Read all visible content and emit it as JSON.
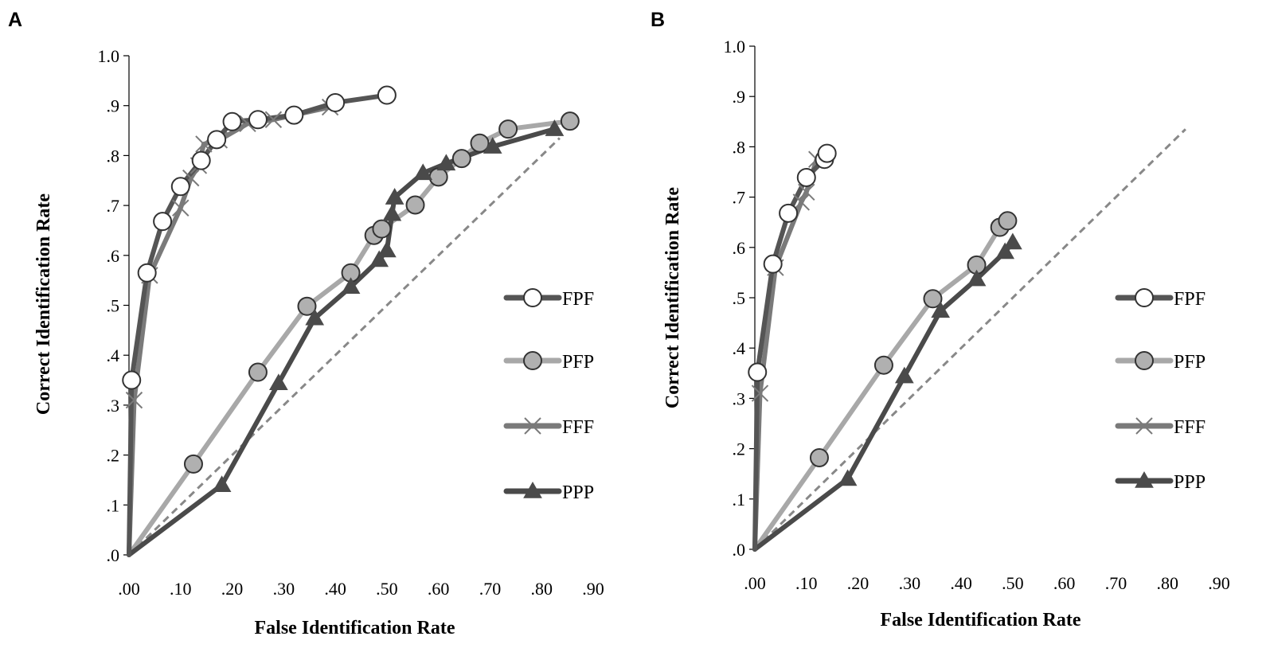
{
  "chart_data": [
    {
      "type": "line",
      "panel": "A",
      "xlabel": "False Identification Rate",
      "ylabel": "Correct Identification Rate",
      "xlim": [
        0,
        0.9
      ],
      "ylim": [
        0,
        1.0
      ],
      "x_ticks": [
        ".00",
        ".10",
        ".20",
        ".30",
        ".40",
        ".50",
        ".60",
        ".70",
        ".80",
        ".90"
      ],
      "y_ticks": [
        ".0",
        ".1",
        ".2",
        ".3",
        ".4",
        ".5",
        ".6",
        ".7",
        ".8",
        ".9",
        "1.0"
      ],
      "chance_line": {
        "x": [
          0,
          0.835
        ],
        "y": [
          0,
          0.835
        ]
      },
      "legend": [
        "FPF",
        "PFP",
        "FFF",
        "PPP"
      ],
      "series": [
        {
          "name": "FPF",
          "color": "#555555",
          "marker": "circle-open",
          "x": [
            0,
            0.005,
            0.035,
            0.065,
            0.1,
            0.14,
            0.17,
            0.2,
            0.25,
            0.32,
            0.4,
            0.5
          ],
          "y": [
            0,
            0.35,
            0.565,
            0.668,
            0.738,
            0.79,
            0.832,
            0.868,
            0.872,
            0.881,
            0.906,
            0.921
          ]
        },
        {
          "name": "PFP",
          "color": "#a8a8a8",
          "marker": "circle-filled",
          "x": [
            0,
            0.125,
            0.25,
            0.345,
            0.43,
            0.475,
            0.49,
            0.555,
            0.6,
            0.645,
            0.68,
            0.735,
            0.855
          ],
          "y": [
            0,
            0.182,
            0.366,
            0.498,
            0.565,
            0.64,
            0.653,
            0.701,
            0.757,
            0.794,
            0.825,
            0.853,
            0.869
          ]
        },
        {
          "name": "FFF",
          "color": "#7a7a7a",
          "marker": "x",
          "x": [
            0,
            0.01,
            0.04,
            0.1,
            0.12,
            0.135,
            0.145,
            0.175,
            0.23,
            0.28,
            0.39
          ],
          "y": [
            0,
            0.31,
            0.56,
            0.695,
            0.755,
            0.78,
            0.823,
            0.831,
            0.864,
            0.872,
            0.897
          ]
        },
        {
          "name": "PPP",
          "color": "#4a4a4a",
          "marker": "triangle",
          "x": [
            0,
            0.18,
            0.29,
            0.36,
            0.43,
            0.485,
            0.5,
            0.51,
            0.515,
            0.57,
            0.615,
            0.705,
            0.825
          ],
          "y": [
            0,
            0.14,
            0.344,
            0.474,
            0.537,
            0.591,
            0.61,
            0.683,
            0.716,
            0.765,
            0.784,
            0.818,
            0.853
          ]
        }
      ]
    },
    {
      "type": "line",
      "panel": "B",
      "xlabel": "False Identification Rate",
      "ylabel": "Correct Identification Rate",
      "xlim": [
        0,
        0.9
      ],
      "ylim": [
        0,
        1.0
      ],
      "x_ticks": [
        ".00",
        ".10",
        ".20",
        ".30",
        ".40",
        ".50",
        ".60",
        ".70",
        ".80",
        ".90"
      ],
      "y_ticks": [
        ".0",
        ".1",
        ".2",
        ".3",
        ".4",
        ".5",
        ".6",
        ".7",
        ".8",
        ".9",
        "1.0"
      ],
      "chance_line": {
        "x": [
          0,
          0.835
        ],
        "y": [
          0,
          0.835
        ]
      },
      "legend": [
        "FPF",
        "PFP",
        "FFF",
        "PPP"
      ],
      "series": [
        {
          "name": "FPF",
          "color": "#555555",
          "marker": "circle-open",
          "x": [
            0,
            0.005,
            0.035,
            0.065,
            0.1,
            0.135,
            0.14
          ],
          "y": [
            0,
            0.352,
            0.567,
            0.668,
            0.739,
            0.775,
            0.787
          ]
        },
        {
          "name": "PFP",
          "color": "#a8a8a8",
          "marker": "circle-filled",
          "x": [
            0,
            0.125,
            0.25,
            0.345,
            0.43,
            0.475,
            0.49
          ],
          "y": [
            0,
            0.182,
            0.366,
            0.498,
            0.565,
            0.64,
            0.653
          ]
        },
        {
          "name": "FFF",
          "color": "#7a7a7a",
          "marker": "x",
          "x": [
            0,
            0.01,
            0.04,
            0.09,
            0.1,
            0.12
          ],
          "y": [
            0,
            0.31,
            0.56,
            0.69,
            0.71,
            0.775
          ]
        },
        {
          "name": "PPP",
          "color": "#4a4a4a",
          "marker": "triangle",
          "x": [
            0,
            0.18,
            0.29,
            0.36,
            0.43,
            0.485,
            0.5
          ],
          "y": [
            0,
            0.14,
            0.344,
            0.474,
            0.537,
            0.591,
            0.61
          ]
        }
      ]
    }
  ]
}
